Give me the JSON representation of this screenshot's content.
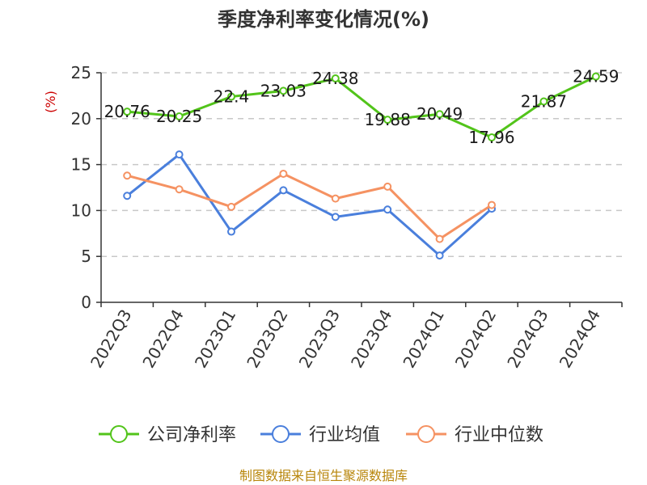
{
  "chart_data": {
    "type": "line",
    "title": "季度净利率变化情况(%)",
    "ylabel": "(%)",
    "xlabel": "",
    "ylim": [
      0,
      25
    ],
    "yticks": [
      0,
      5,
      10,
      15,
      20,
      25
    ],
    "grid": "horizontal dashed",
    "legend_position": "bottom",
    "categories": [
      "2022Q3",
      "2022Q4",
      "2023Q1",
      "2023Q2",
      "2023Q3",
      "2023Q4",
      "2024Q1",
      "2024Q2",
      "2024Q3",
      "2024Q4"
    ],
    "series": [
      {
        "name": "公司净利率",
        "color": "#52c41a",
        "show_labels": true,
        "values": [
          20.76,
          20.25,
          22.4,
          23.03,
          24.38,
          19.88,
          20.49,
          17.96,
          21.87,
          24.59
        ]
      },
      {
        "name": "行业均值",
        "color": "#4a7fdc",
        "show_labels": false,
        "values": [
          11.6,
          16.1,
          7.7,
          12.2,
          9.3,
          10.1,
          5.1,
          10.2,
          null,
          null
        ]
      },
      {
        "name": "行业中位数",
        "color": "#f59262",
        "show_labels": false,
        "values": [
          13.8,
          12.3,
          10.4,
          14.0,
          11.3,
          12.6,
          6.9,
          10.6,
          null,
          null
        ]
      }
    ]
  },
  "source": "制图数据来自恒生聚源数据库"
}
